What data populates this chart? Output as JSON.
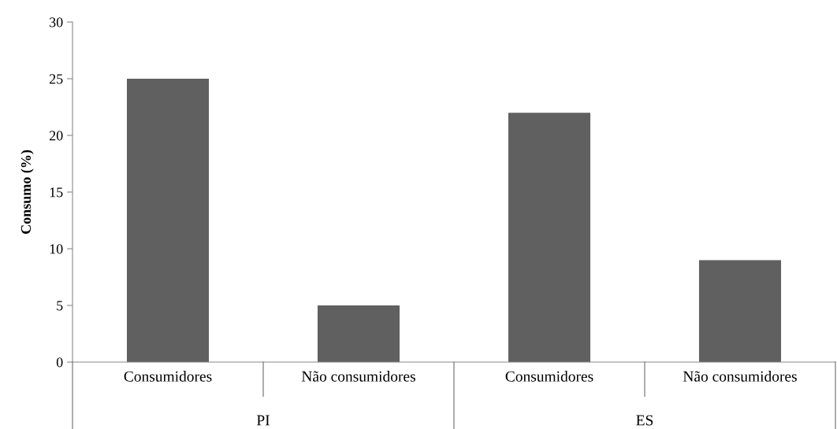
{
  "chart_data": {
    "type": "bar",
    "ylabel": "Consumo (%)",
    "categories": [
      "Consumidores",
      "Não consumidores",
      "Consumidores",
      "Não consumidores"
    ],
    "values": [
      25,
      5,
      22,
      9
    ],
    "color": "#606060",
    "annotations": [
      "PI",
      "ES"
    ],
    "ylim": [
      0,
      30
    ],
    "yticks": [
      0,
      5,
      10,
      15,
      20,
      25,
      30
    ],
    "grid": false,
    "legend": false
  }
}
